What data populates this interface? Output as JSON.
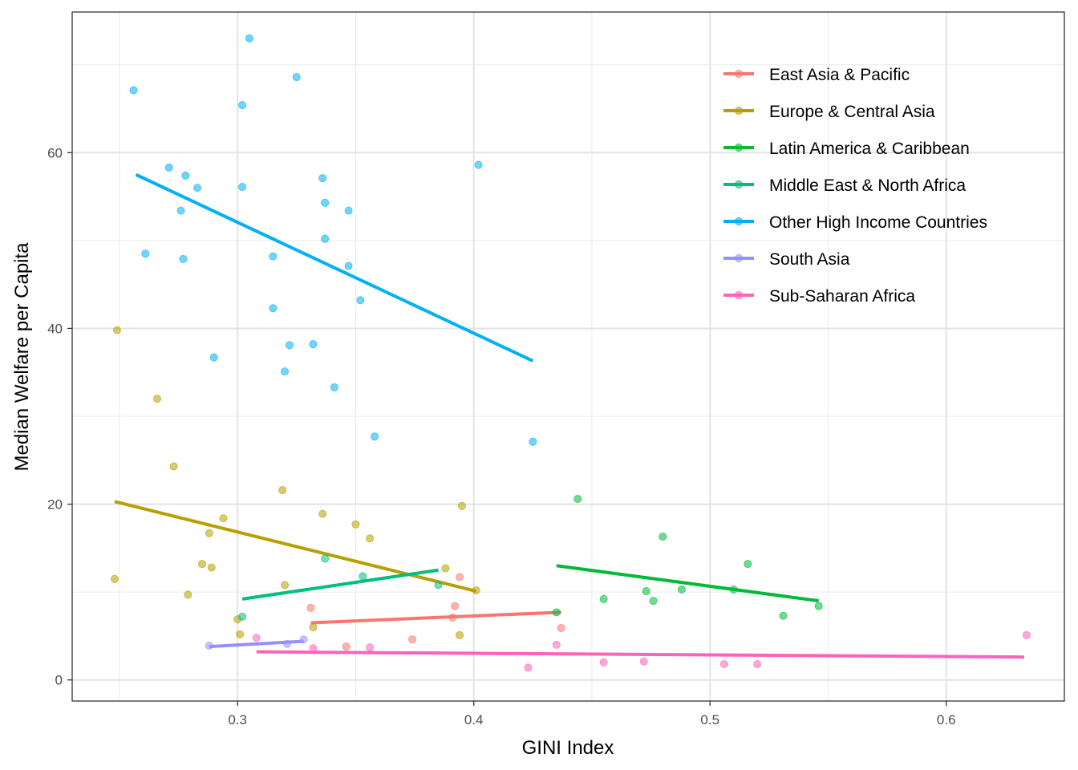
{
  "chart_data": {
    "type": "scatter",
    "xlabel": "GINI Index",
    "ylabel": "Median Welfare per Capita",
    "xlim": [
      0.23,
      0.65
    ],
    "ylim": [
      -2.4,
      76
    ],
    "x_ticks": [
      0.3,
      0.4,
      0.5,
      0.6
    ],
    "x_tick_labels": [
      "0.3",
      "0.4",
      "0.5",
      "0.6"
    ],
    "y_ticks": [
      0,
      20,
      40,
      60
    ],
    "y_tick_labels": [
      "0",
      "20",
      "40",
      "60"
    ],
    "grid": true,
    "legend_position": "top-right",
    "series": [
      {
        "name": "East Asia & Pacific",
        "color": "#F8766D",
        "points": [
          [
            0.331,
            8.2
          ],
          [
            0.346,
            3.8
          ],
          [
            0.374,
            4.6
          ],
          [
            0.391,
            7.1
          ],
          [
            0.392,
            8.4
          ],
          [
            0.394,
            11.7
          ],
          [
            0.437,
            5.9
          ]
        ],
        "trend": [
          [
            0.331,
            6.5
          ],
          [
            0.437,
            7.7
          ]
        ]
      },
      {
        "name": "Europe & Central Asia",
        "color": "#B79F00",
        "points": [
          [
            0.248,
            11.5
          ],
          [
            0.249,
            39.8
          ],
          [
            0.266,
            32.0
          ],
          [
            0.273,
            24.3
          ],
          [
            0.279,
            9.7
          ],
          [
            0.285,
            13.2
          ],
          [
            0.288,
            16.7
          ],
          [
            0.289,
            12.8
          ],
          [
            0.294,
            18.4
          ],
          [
            0.3,
            6.9
          ],
          [
            0.301,
            5.2
          ],
          [
            0.319,
            21.6
          ],
          [
            0.32,
            10.8
          ],
          [
            0.332,
            6.0
          ],
          [
            0.336,
            18.9
          ],
          [
            0.35,
            17.7
          ],
          [
            0.356,
            16.1
          ],
          [
            0.388,
            12.7
          ],
          [
            0.394,
            5.1
          ],
          [
            0.395,
            19.8
          ],
          [
            0.401,
            10.2
          ]
        ],
        "trend": [
          [
            0.248,
            20.3
          ],
          [
            0.401,
            10.1
          ]
        ]
      },
      {
        "name": "Latin America & Caribbean",
        "color": "#00BA38",
        "points": [
          [
            0.435,
            7.7
          ],
          [
            0.444,
            20.6
          ],
          [
            0.455,
            9.2
          ],
          [
            0.473,
            10.1
          ],
          [
            0.476,
            9.0
          ],
          [
            0.48,
            16.3
          ],
          [
            0.488,
            10.3
          ],
          [
            0.51,
            10.3
          ],
          [
            0.516,
            13.2
          ],
          [
            0.531,
            7.3
          ],
          [
            0.546,
            8.4
          ]
        ],
        "trend": [
          [
            0.435,
            13.0
          ],
          [
            0.546,
            9.0
          ]
        ]
      },
      {
        "name": "Middle East & North Africa",
        "color": "#00BF7D",
        "points": [
          [
            0.302,
            7.2
          ],
          [
            0.337,
            13.8
          ],
          [
            0.353,
            11.8
          ],
          [
            0.385,
            10.8
          ]
        ],
        "trend": [
          [
            0.302,
            9.2
          ],
          [
            0.385,
            12.5
          ]
        ]
      },
      {
        "name": "Other High Income Countries",
        "color": "#00B0F6",
        "points": [
          [
            0.256,
            67.1
          ],
          [
            0.261,
            48.5
          ],
          [
            0.271,
            58.3
          ],
          [
            0.276,
            53.4
          ],
          [
            0.277,
            47.9
          ],
          [
            0.278,
            57.4
          ],
          [
            0.283,
            56.0
          ],
          [
            0.29,
            36.7
          ],
          [
            0.302,
            65.4
          ],
          [
            0.302,
            56.1
          ],
          [
            0.305,
            73.0
          ],
          [
            0.315,
            48.2
          ],
          [
            0.315,
            42.3
          ],
          [
            0.32,
            35.1
          ],
          [
            0.322,
            38.1
          ],
          [
            0.325,
            68.6
          ],
          [
            0.332,
            38.2
          ],
          [
            0.336,
            57.1
          ],
          [
            0.337,
            54.3
          ],
          [
            0.337,
            50.2
          ],
          [
            0.341,
            33.3
          ],
          [
            0.347,
            53.4
          ],
          [
            0.347,
            47.1
          ],
          [
            0.352,
            43.2
          ],
          [
            0.358,
            27.7
          ],
          [
            0.402,
            58.6
          ],
          [
            0.425,
            27.1
          ]
        ],
        "trend": [
          [
            0.257,
            57.5
          ],
          [
            0.425,
            36.3
          ]
        ]
      },
      {
        "name": "South Asia",
        "color": "#9590FF",
        "points": [
          [
            0.288,
            3.9
          ],
          [
            0.321,
            4.1
          ],
          [
            0.328,
            4.6
          ]
        ],
        "trend": [
          [
            0.288,
            3.8
          ],
          [
            0.328,
            4.4
          ]
        ]
      },
      {
        "name": "Sub-Saharan Africa",
        "color": "#FF62BC",
        "points": [
          [
            0.308,
            4.8
          ],
          [
            0.332,
            3.6
          ],
          [
            0.356,
            3.7
          ],
          [
            0.423,
            1.4
          ],
          [
            0.435,
            4.0
          ],
          [
            0.455,
            2.0
          ],
          [
            0.472,
            2.1
          ],
          [
            0.506,
            1.8
          ],
          [
            0.52,
            1.8
          ],
          [
            0.634,
            5.1
          ]
        ],
        "trend": [
          [
            0.308,
            3.2
          ],
          [
            0.633,
            2.6
          ]
        ]
      }
    ]
  }
}
